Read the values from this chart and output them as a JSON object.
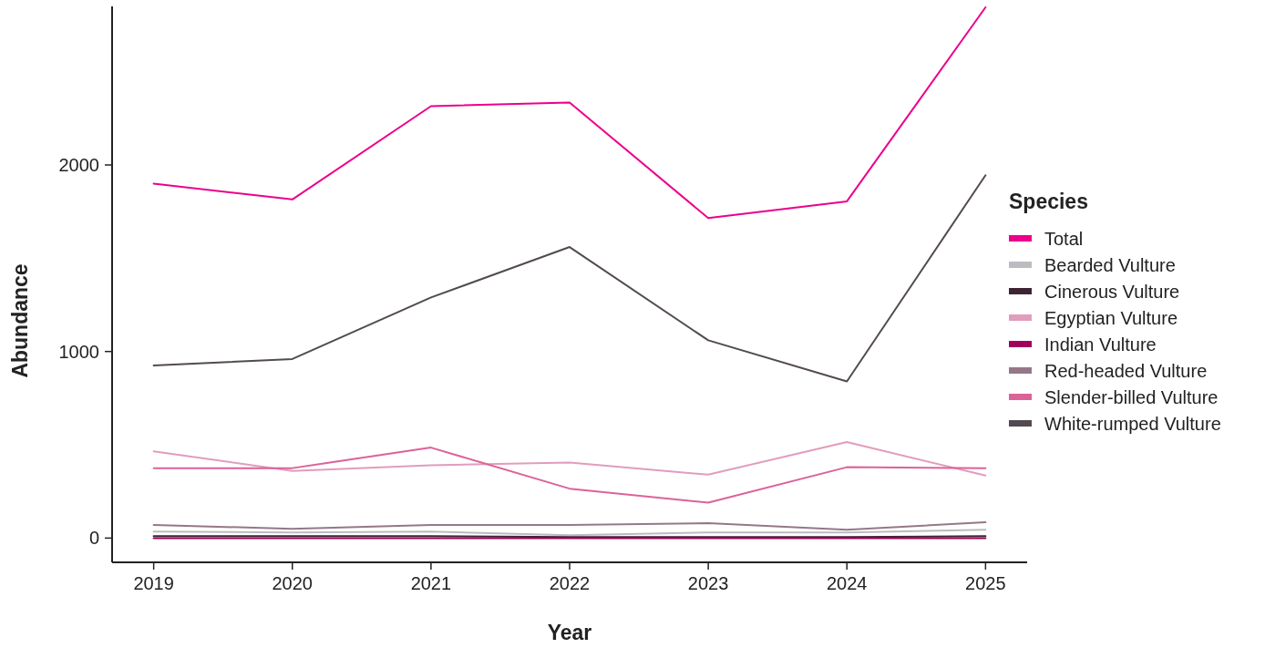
{
  "chart_data": {
    "type": "line",
    "xlabel": "Year",
    "ylabel": "Abundance",
    "legend_title": "Species",
    "legend": "right",
    "x": [
      2019,
      2020,
      2021,
      2022,
      2023,
      2024,
      2025
    ],
    "xlim": [
      2018.7,
      2025.3
    ],
    "xticks": [
      2019,
      2020,
      2021,
      2022,
      2023,
      2024,
      2025
    ],
    "ylim": [
      -130,
      2850
    ],
    "yticks": [
      0,
      1000,
      2000
    ],
    "grid": false,
    "line_style": "solid",
    "series": [
      {
        "name": "Total",
        "color": "#ec008c",
        "values": [
          1900,
          1815,
          2315,
          2335,
          1715,
          1805,
          2845
        ]
      },
      {
        "name": "Bearded Vulture",
        "color": "#bcbcc0",
        "values": [
          35,
          30,
          35,
          15,
          30,
          30,
          45
        ]
      },
      {
        "name": "Cinerous Vulture",
        "color": "#3d2433",
        "values": [
          10,
          10,
          10,
          5,
          5,
          5,
          10
        ]
      },
      {
        "name": "Egyptian Vulture",
        "color": "#e19dbc",
        "values": [
          465,
          360,
          390,
          405,
          340,
          515,
          335
        ]
      },
      {
        "name": "Indian Vulture",
        "color": "#a0005c",
        "values": [
          0,
          0,
          0,
          0,
          0,
          0,
          0
        ]
      },
      {
        "name": "Red-headed Vulture",
        "color": "#947888",
        "values": [
          70,
          50,
          70,
          70,
          80,
          45,
          85
        ]
      },
      {
        "name": "Slender-billed Vulture",
        "color": "#dc6298",
        "values": [
          375,
          375,
          485,
          265,
          190,
          380,
          375
        ]
      },
      {
        "name": "White-rumped Vulture",
        "color": "#524a50",
        "values": [
          925,
          960,
          1290,
          1560,
          1060,
          840,
          1945
        ]
      }
    ]
  }
}
